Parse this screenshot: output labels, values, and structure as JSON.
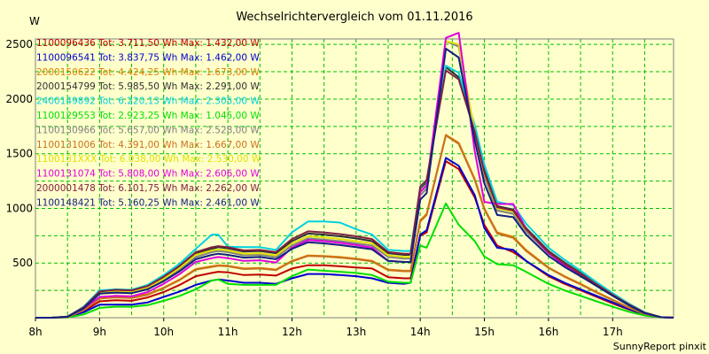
{
  "footer": "SunnyReport pinxit",
  "chart_data": {
    "type": "line",
    "title": "Wechselrichtervergleich vom 01.11.2016",
    "ylabel": "W",
    "xlabel": "",
    "x_ticks": [
      "8h",
      "9h",
      "10h",
      "11h",
      "12h",
      "13h",
      "14h",
      "15h",
      "16h",
      "17h"
    ],
    "y_ticks": [
      500,
      1000,
      1500,
      2000,
      2500
    ],
    "xlim": [
      8.0,
      17.95
    ],
    "ylim": [
      0,
      2550
    ],
    "grid": true,
    "legend_position": "top-left",
    "x": [
      8.0,
      8.25,
      8.5,
      8.75,
      9.0,
      9.25,
      9.5,
      9.75,
      10.0,
      10.25,
      10.5,
      10.75,
      10.85,
      11.0,
      11.25,
      11.5,
      11.75,
      12.0,
      12.25,
      12.5,
      12.75,
      13.0,
      13.25,
      13.5,
      13.75,
      13.85,
      14.0,
      14.1,
      14.4,
      14.6,
      14.85,
      15.0,
      15.2,
      15.45,
      15.65,
      16.0,
      16.25,
      16.5,
      16.75,
      17.0,
      17.25,
      17.5,
      17.75,
      17.95
    ],
    "series": [
      {
        "name": "1100096436",
        "label": "1100096436 Tot: 3.711,50 Wh Max: 1.432,00 W",
        "color": "#c00000",
        "values": [
          0,
          0,
          5,
          60,
          150,
          160,
          155,
          185,
          235,
          300,
          380,
          410,
          420,
          415,
          390,
          395,
          385,
          450,
          480,
          480,
          470,
          460,
          450,
          370,
          360,
          360,
          750,
          780,
          1432,
          1360,
          1100,
          850,
          660,
          600,
          520,
          380,
          310,
          250,
          190,
          130,
          75,
          30,
          5,
          0
        ]
      },
      {
        "name": "1100096541",
        "label": "1100096541 Tot: 3.837,75 Wh Max: 1.462,00 W",
        "color": "#0000d0",
        "values": [
          0,
          0,
          5,
          50,
          120,
          120,
          120,
          140,
          190,
          240,
          300,
          340,
          350,
          340,
          320,
          320,
          310,
          360,
          400,
          400,
          390,
          380,
          360,
          320,
          310,
          320,
          760,
          800,
          1462,
          1390,
          1120,
          820,
          640,
          620,
          520,
          390,
          320,
          260,
          200,
          140,
          80,
          30,
          5,
          0
        ]
      },
      {
        "name": "2000150622",
        "label": "2000150622 Tot: 4.424,25 Wh Max: 1.673,00 W",
        "color": "#e08000",
        "values": [
          0,
          0,
          5,
          70,
          180,
          190,
          185,
          215,
          275,
          350,
          445,
          470,
          480,
          475,
          450,
          455,
          440,
          520,
          570,
          565,
          555,
          540,
          520,
          440,
          430,
          430,
          890,
          950,
          1673,
          1600,
          1270,
          1000,
          780,
          740,
          620,
          460,
          380,
          310,
          235,
          165,
          95,
          35,
          5,
          0
        ]
      },
      {
        "name": "2000154799",
        "label": "2000154799 Tot: 5.985,50 Wh Max: 2.291,00 W",
        "color": "#303030",
        "values": [
          0,
          0,
          10,
          95,
          240,
          250,
          245,
          285,
          370,
          470,
          590,
          630,
          645,
          635,
          605,
          610,
          590,
          700,
          770,
          760,
          745,
          725,
          700,
          590,
          575,
          575,
          1180,
          1240,
          2291,
          2200,
          1720,
          1350,
          1020,
          990,
          820,
          610,
          505,
          410,
          310,
          215,
          125,
          45,
          5,
          0
        ]
      },
      {
        "name": "2400149892",
        "label": "2400149892 Tot: 6.220,13 Wh Max: 2.305,00 W",
        "color": "#00d0e0",
        "values": [
          0,
          0,
          10,
          100,
          250,
          260,
          255,
          300,
          390,
          495,
          630,
          760,
          760,
          650,
          645,
          645,
          620,
          780,
          880,
          880,
          870,
          810,
          760,
          620,
          610,
          610,
          1190,
          1260,
          2305,
          2240,
          1760,
          1400,
          1060,
          1030,
          860,
          640,
          530,
          430,
          325,
          225,
          130,
          50,
          5,
          0
        ]
      },
      {
        "name": "1100129553",
        "label": "1100129553 Tot: 2.923,25 Wh Max: 1.045,00 W",
        "color": "#00e000",
        "values": [
          0,
          0,
          2,
          30,
          90,
          100,
          100,
          115,
          155,
          200,
          260,
          340,
          350,
          310,
          300,
          300,
          300,
          380,
          440,
          430,
          420,
          410,
          390,
          330,
          320,
          320,
          660,
          640,
          1045,
          850,
          700,
          560,
          490,
          480,
          420,
          310,
          250,
          200,
          150,
          100,
          55,
          20,
          3,
          0
        ]
      },
      {
        "name": "1100130966",
        "label": "1100130966 Tot: 5.657,00 Wh Max: 2.528,00 W",
        "color": "#808080",
        "values": [
          0,
          0,
          8,
          85,
          220,
          230,
          225,
          265,
          345,
          440,
          555,
          600,
          610,
          600,
          570,
          575,
          555,
          660,
          725,
          715,
          700,
          680,
          660,
          555,
          540,
          540,
          1120,
          1180,
          2528,
          2480,
          1690,
          1290,
          980,
          950,
          790,
          590,
          485,
          395,
          300,
          205,
          120,
          45,
          5,
          0
        ]
      },
      {
        "name": "1100131006",
        "label": "1100131006 Tot: 4.391,00 Wh Max: 1.667,00 W",
        "color": "#c87020",
        "values": [
          0,
          0,
          5,
          70,
          175,
          185,
          180,
          210,
          270,
          345,
          440,
          465,
          475,
          470,
          445,
          450,
          435,
          515,
          565,
          560,
          550,
          535,
          515,
          435,
          425,
          425,
          880,
          940,
          1667,
          1590,
          1260,
          990,
          770,
          730,
          610,
          455,
          375,
          305,
          230,
          160,
          92,
          34,
          5,
          0
        ]
      },
      {
        "name": "1100131XXX",
        "label": "1100131XXX Tot: 6.038,00 Wh Max: 2.530,00 W",
        "color": "#e0e000",
        "values": [
          0,
          0,
          8,
          90,
          230,
          240,
          235,
          275,
          355,
          455,
          575,
          615,
          625,
          615,
          585,
          590,
          570,
          680,
          745,
          735,
          720,
          700,
          680,
          570,
          555,
          555,
          1150,
          1210,
          2530,
          2500,
          1700,
          1320,
          1000,
          970,
          805,
          600,
          495,
          400,
          305,
          210,
          122,
          46,
          5,
          0
        ]
      },
      {
        "name": "1100131074",
        "label": "1100131074 Tot: 5.808,00 Wh Max: 2.606,00 W",
        "color": "#e000e0",
        "values": [
          0,
          0,
          8,
          85,
          190,
          200,
          195,
          235,
          310,
          400,
          510,
          545,
          555,
          545,
          520,
          525,
          505,
          640,
          710,
          700,
          685,
          665,
          640,
          520,
          510,
          510,
          1150,
          1210,
          2560,
          2606,
          1520,
          1060,
          1040,
          1040,
          810,
          590,
          480,
          390,
          295,
          205,
          118,
          44,
          5,
          0
        ]
      },
      {
        "name": "2000001478",
        "label": "2000001478 Tot: 6.101,75 Wh Max: 2.262,00 W",
        "color": "#802040",
        "values": [
          0,
          0,
          10,
          95,
          240,
          255,
          250,
          290,
          375,
          475,
          600,
          645,
          655,
          645,
          615,
          620,
          600,
          720,
          790,
          780,
          765,
          745,
          720,
          600,
          585,
          585,
          1200,
          1260,
          2262,
          2180,
          1700,
          1330,
          1010,
          980,
          810,
          600,
          495,
          400,
          305,
          210,
          122,
          46,
          5,
          0
        ]
      },
      {
        "name": "1100148421",
        "label": "1100148421 Tot: 5.160,25 Wh Max: 2.461,00 W",
        "color": "#102080",
        "values": [
          0,
          0,
          8,
          85,
          220,
          230,
          225,
          260,
          335,
          425,
          535,
          575,
          585,
          575,
          550,
          555,
          535,
          630,
          690,
          680,
          665,
          645,
          625,
          520,
          510,
          510,
          1080,
          1140,
          2461,
          2380,
          1620,
          1230,
          940,
          920,
          760,
          565,
          465,
          380,
          290,
          200,
          115,
          42,
          5,
          0
        ]
      }
    ]
  }
}
